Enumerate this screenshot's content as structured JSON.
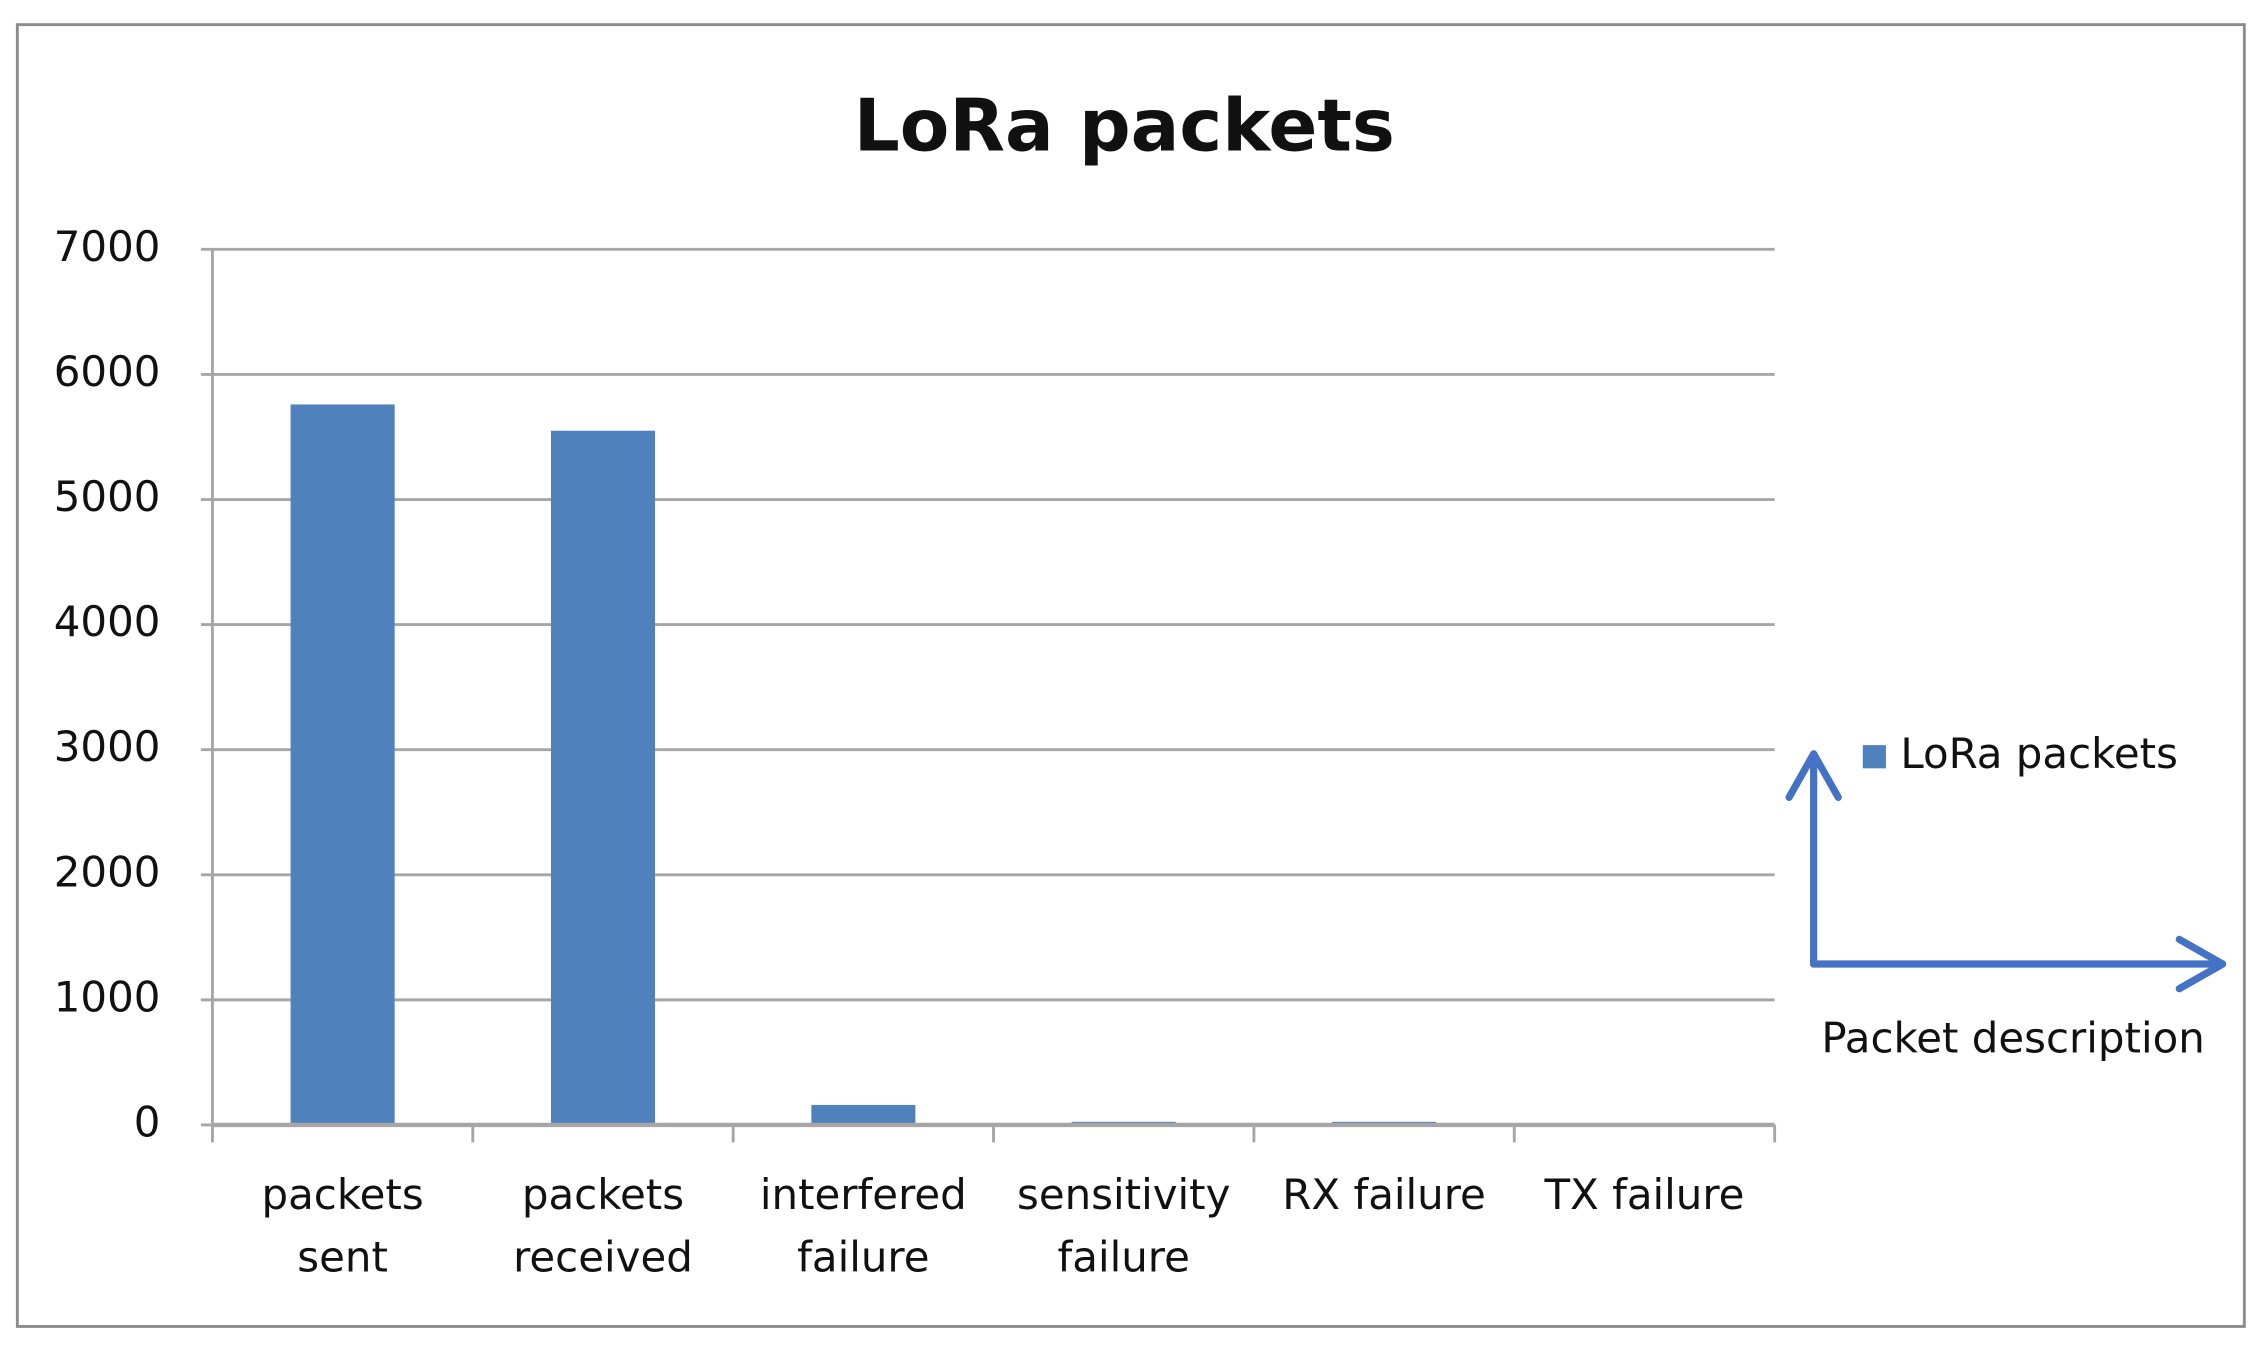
{
  "chart_data": {
    "type": "bar",
    "title": "LoRa packets",
    "categories": [
      "packets sent",
      "packets received",
      "interfered failure",
      "sensitivity failure",
      "RX failure",
      "TX failure"
    ],
    "series": [
      {
        "name": "LoRa packets",
        "color": "#4f81bd",
        "values": [
          5760,
          5550,
          160,
          25,
          25,
          0
        ]
      }
    ],
    "ylim": [
      0,
      7000
    ],
    "yticks": [
      0,
      1000,
      2000,
      3000,
      4000,
      5000,
      6000,
      7000
    ],
    "grid": true,
    "annotation": "Packet description"
  }
}
